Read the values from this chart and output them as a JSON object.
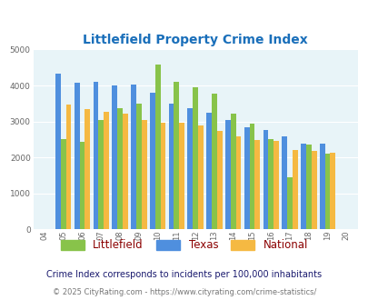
{
  "title": "Littlefield Property Crime Index",
  "years": [
    "04",
    "05",
    "06",
    "07",
    "08",
    "09",
    "10",
    "11",
    "12",
    "13",
    "14",
    "15",
    "16",
    "17",
    "18",
    "19",
    "20"
  ],
  "littlefield": [
    0,
    2520,
    2430,
    3040,
    3380,
    3500,
    4580,
    4100,
    3940,
    3770,
    3210,
    2940,
    2510,
    1450,
    2350,
    2110,
    0
  ],
  "texas": [
    0,
    4320,
    4080,
    4100,
    3990,
    4030,
    3800,
    3490,
    3370,
    3240,
    3040,
    2850,
    2770,
    2590,
    2390,
    2390,
    0
  ],
  "national": [
    0,
    3460,
    3340,
    3260,
    3210,
    3050,
    2960,
    2960,
    2890,
    2730,
    2590,
    2490,
    2460,
    2210,
    2190,
    2130,
    0
  ],
  "bar_colors": {
    "littlefield": "#88c34a",
    "texas": "#4f8fde",
    "national": "#f5b942"
  },
  "ylim": [
    0,
    5000
  ],
  "yticks": [
    0,
    1000,
    2000,
    3000,
    4000,
    5000
  ],
  "bg_color": "#e8f4f8",
  "fig_bg": "#ffffff",
  "subtitle": "Crime Index corresponds to incidents per 100,000 inhabitants",
  "copyright_plain": "© 2025 CityRating.com - ",
  "copyright_link": "https://www.cityrating.com/crime-statistics/",
  "title_color": "#1a6fba",
  "subtitle_color": "#1a1a6e",
  "copyright_color": "#777777",
  "copyright_link_color": "#4f8fde",
  "legend_label_color": "#8b0000"
}
